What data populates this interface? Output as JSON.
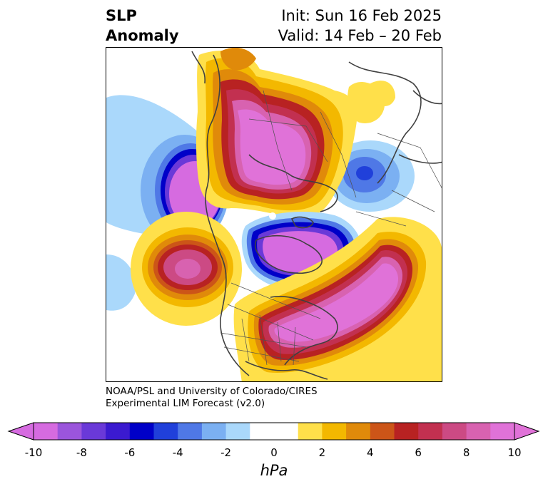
{
  "title": {
    "left_line1": "SLP",
    "left_line2": "Anomaly",
    "right_line1": "Init: Sun 16 Feb 2025",
    "right_line2": "Valid: 14 Feb – 20 Feb"
  },
  "credit": {
    "line1": "NOAA/PSL and University of Colorado/CIRES",
    "line2": "Experimental LIM Forecast (v2.0)"
  },
  "colorbar": {
    "unit": "hPa",
    "ticks": [
      "-10",
      "-8",
      "-6",
      "-4",
      "-2",
      "0",
      "2",
      "4",
      "6",
      "8",
      "10"
    ],
    "colors": [
      "#d66be0",
      "#9b55dc",
      "#6a39d8",
      "#3b1ad0",
      "#0000c8",
      "#2040da",
      "#4f78e6",
      "#7bb0f2",
      "#aad8fb",
      "#ffffff",
      "#ffffff",
      "#ffe04a",
      "#f3b800",
      "#e08a0a",
      "#cc5518",
      "#b82222",
      "#c23050",
      "#cc4a84",
      "#d862b0",
      "#e072d8"
    ],
    "extend_low_color": "#d66be0",
    "extend_high_color": "#e072d8"
  },
  "map": {
    "anomalies": [
      {
        "name": "arctic-high",
        "sign": "positive",
        "peak_hPa": 10
      },
      {
        "name": "gulf-of-alaska-low",
        "sign": "negative",
        "peak_hPa": -10
      },
      {
        "name": "canadian-archipelago-low",
        "sign": "negative",
        "peak_hPa": -10
      },
      {
        "name": "siberian-low",
        "sign": "negative",
        "peak_hPa": -6
      },
      {
        "name": "north-pacific-high",
        "sign": "positive",
        "peak_hPa": 8
      },
      {
        "name": "north-atlantic-high",
        "sign": "positive",
        "peak_hPa": 10
      }
    ]
  }
}
